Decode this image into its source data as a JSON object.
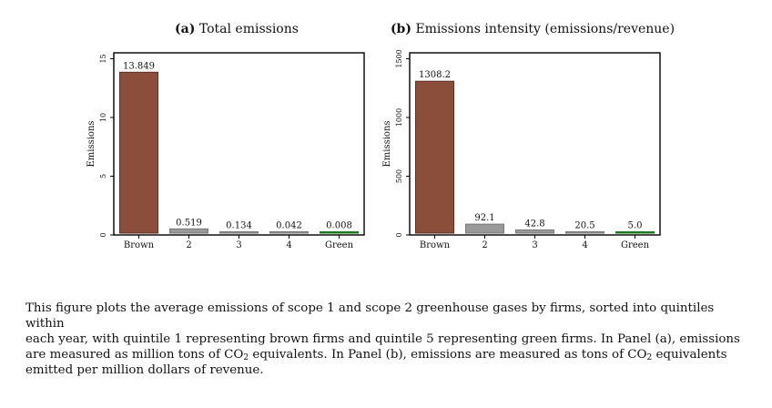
{
  "colors": {
    "brown": "#8b4e3b",
    "middle": "#999999",
    "green": "#1f7a1f"
  },
  "chart_data": [
    {
      "type": "bar",
      "panel_tag": "(a)",
      "title": "Total emissions",
      "ylabel": "Emissions",
      "categories": [
        "Brown",
        "2",
        "3",
        "4",
        "Green"
      ],
      "values": [
        13.849,
        0.519,
        0.134,
        0.042,
        0.008
      ],
      "value_labels": [
        "13.849",
        "0.519",
        "0.134",
        "0.042",
        "0.008"
      ],
      "yticks": [
        0,
        5,
        10,
        15
      ],
      "ytick_labels": [
        "0",
        "5",
        "10",
        "15"
      ],
      "ylim": [
        0,
        15.5
      ],
      "grid": false
    },
    {
      "type": "bar",
      "panel_tag": "(b)",
      "title": "Emissions intensity (emissions/revenue)",
      "ylabel": "Emissions",
      "categories": [
        "Brown",
        "2",
        "3",
        "4",
        "Green"
      ],
      "values": [
        1308.2,
        92.1,
        42.8,
        20.5,
        5.0
      ],
      "value_labels": [
        "1308.2",
        "92.1",
        "42.8",
        "20.5",
        "5.0"
      ],
      "yticks": [
        0,
        500,
        1000,
        1500
      ],
      "ytick_labels": [
        "0",
        "500",
        "1000",
        "1500"
      ],
      "ylim": [
        0,
        1550
      ],
      "grid": false
    }
  ],
  "caption": {
    "line1": "This figure plots the average emissions of scope 1 and scope 2 greenhouse gases by firms, sorted into quintiles within",
    "line2": "each year, with quintile 1 representing brown firms and quintile 5 representing green firms. In Panel (a), emissions",
    "line3a": "are measured as million tons of CO",
    "sub": "2",
    "line3b": " equivalents. In Panel (b), emissions are measured as tons of CO",
    "line3c": " equivalents",
    "line4": "emitted per million dollars of revenue."
  }
}
